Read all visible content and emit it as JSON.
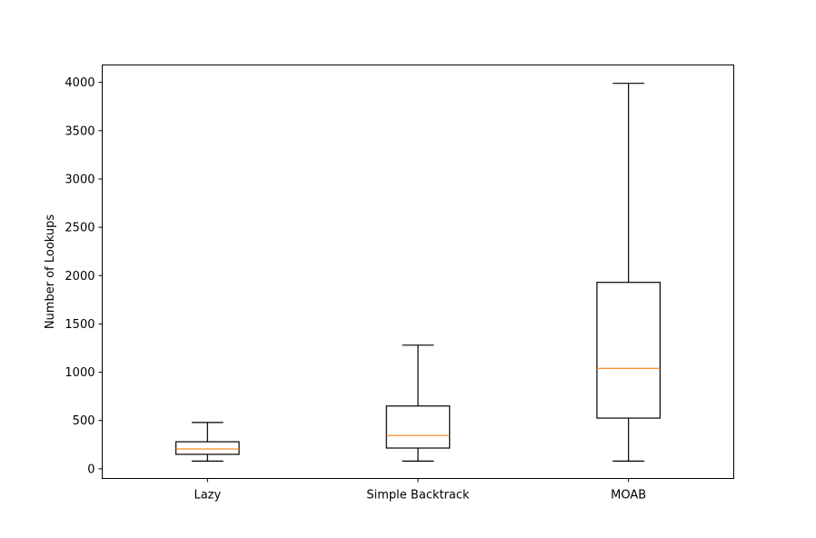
{
  "chart_data": {
    "type": "boxplot",
    "title": "",
    "xlabel": "",
    "ylabel": "Number of Lookups",
    "ylim": [
      -100,
      4180
    ],
    "yticks": [
      0,
      500,
      1000,
      1500,
      2000,
      2500,
      3000,
      3500,
      4000
    ],
    "grid": false,
    "colors": {
      "box": "#000000",
      "median": "#ff7f0e",
      "frame": "#000000"
    },
    "categories": [
      "Lazy",
      "Simple Backtrack",
      "MOAB"
    ],
    "boxes": [
      {
        "label": "Lazy",
        "whisker_low": 80,
        "q1": 150,
        "median": 205,
        "q3": 280,
        "whisker_high": 480
      },
      {
        "label": "Simple Backtrack",
        "whisker_low": 80,
        "q1": 215,
        "median": 345,
        "q3": 650,
        "whisker_high": 1280
      },
      {
        "label": "MOAB",
        "whisker_low": 80,
        "q1": 525,
        "median": 1040,
        "q3": 1930,
        "whisker_high": 3990
      }
    ]
  }
}
